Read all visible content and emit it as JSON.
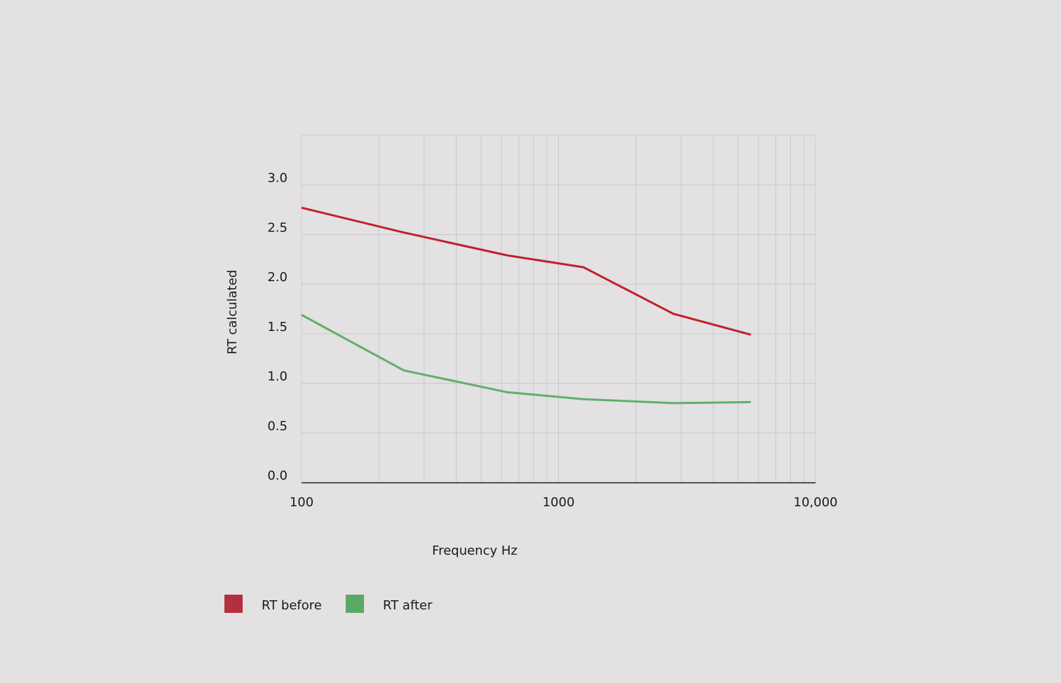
{
  "chart_data": {
    "type": "line",
    "title": "",
    "xlabel": "Frequency Hz",
    "ylabel": "RT calculated",
    "x_scale": "log",
    "xlim": [
      100,
      10000
    ],
    "ylim": [
      0,
      3.5
    ],
    "x_ticks": [
      {
        "value": 100,
        "label": "100"
      },
      {
        "value": 1000,
        "label": "1000"
      },
      {
        "value": 10000,
        "label": "10,000"
      }
    ],
    "y_ticks": [
      {
        "value": 0.0,
        "label": "0.0"
      },
      {
        "value": 0.5,
        "label": "0.5"
      },
      {
        "value": 1.0,
        "label": "1.0"
      },
      {
        "value": 1.5,
        "label": "1.5"
      },
      {
        "value": 2.0,
        "label": "2.0"
      },
      {
        "value": 2.5,
        "label": "2.5"
      },
      {
        "value": 3.0,
        "label": "3.0"
      }
    ],
    "grid": true,
    "legend_position": "bottom-left",
    "series": [
      {
        "name": "RT before",
        "color": "#c0202c",
        "legend_color": "#b5303e",
        "points": [
          {
            "x": 100,
            "y": 2.77
          },
          {
            "x": 250,
            "y": 2.52
          },
          {
            "x": 630,
            "y": 2.29
          },
          {
            "x": 1250,
            "y": 2.17
          },
          {
            "x": 2800,
            "y": 1.7
          },
          {
            "x": 5600,
            "y": 1.49
          }
        ]
      },
      {
        "name": "RT after",
        "color": "#5fb069",
        "legend_color": "#5aaa63",
        "points": [
          {
            "x": 100,
            "y": 1.69
          },
          {
            "x": 250,
            "y": 1.13
          },
          {
            "x": 630,
            "y": 0.91
          },
          {
            "x": 1250,
            "y": 0.84
          },
          {
            "x": 2800,
            "y": 0.8
          },
          {
            "x": 5600,
            "y": 0.81
          }
        ]
      }
    ]
  }
}
